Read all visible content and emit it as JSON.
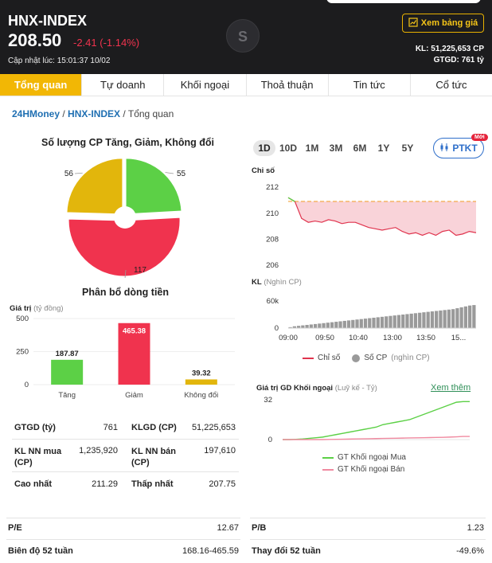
{
  "header": {
    "title": "HNX-INDEX",
    "price": "208.50",
    "change": "-2.41 (-1.14%)",
    "update_label": "Cập nhật lúc: 15:01:37 10/02",
    "board_button": "Xem bảng giá",
    "kl": "KL: 51,225,653 CP",
    "gtgd": "GTGD: 761 tỷ"
  },
  "tabs": [
    {
      "label": "Tổng quan",
      "active": true
    },
    {
      "label": "Tự doanh"
    },
    {
      "label": "Khối ngoại"
    },
    {
      "label": "Thoả thuận"
    },
    {
      "label": "Tin tức"
    },
    {
      "label": "Cổ tức"
    }
  ],
  "breadcrumb": [
    "24HMoney",
    "HNX-INDEX",
    "Tổng quan"
  ],
  "pie": {
    "title": "Số lượng CP Tăng, Giảm, Không đổi",
    "up": 55,
    "down": 117,
    "unchanged": 56,
    "colors": {
      "up": "#5cd046",
      "down": "#f0334e",
      "unchanged": "#e2b60c"
    }
  },
  "flow": {
    "title": "Phân bổ dòng tiền",
    "ylabel": "Giá trị",
    "yunit": "(tỷ đồng)"
  },
  "range_buttons": [
    "1D",
    "10D",
    "1M",
    "3M",
    "6M",
    "1Y",
    "5Y"
  ],
  "ptkt": {
    "label": "PTKT",
    "badge": "Mới"
  },
  "index_chart": {
    "ylabel": "Chỉ số",
    "vol_label": "KL",
    "vol_unit": "(Nghìn CP)",
    "legend_index": "Chỉ số",
    "legend_vol": "Số CP",
    "legend_vol_unit": "(nghìn CP)"
  },
  "foreign": {
    "title": "Giá trị GD Khối ngoại",
    "unit": "(Luỹ kế - Tỷ)",
    "link": "Xem thêm",
    "legend_buy": "GT Khối ngoại Mua",
    "legend_sell": "GT Khối ngoại Bán"
  },
  "stats": {
    "gtgd_label": "GTGD (tỷ)",
    "gtgd": "761",
    "klgd_label": "KLGD (CP)",
    "klgd": "51,225,653",
    "nn_buy_label": "KL NN mua (CP)",
    "nn_buy": "1,235,920",
    "nn_sell_label": "KL NN bán (CP)",
    "nn_sell": "197,610",
    "high_label": "Cao nhất",
    "high": "211.29",
    "low_label": "Thấp nhất",
    "low": "207.75",
    "pe_label": "P/E",
    "pe": "12.67",
    "pb_label": "P/B",
    "pb": "1.23",
    "range52_label": "Biên độ 52 tuần",
    "range52": "168.16-465.59",
    "change52_label": "Thay đổi 52 tuần",
    "change52": "-49.6%"
  },
  "chart_data": [
    {
      "type": "pie",
      "title": "Số lượng CP Tăng, Giảm, Không đổi",
      "categories": [
        "Tăng",
        "Giảm",
        "Không đổi"
      ],
      "values": [
        55,
        117,
        56
      ]
    },
    {
      "type": "bar",
      "title": "Phân bổ dòng tiền",
      "ylabel": "Giá trị (tỷ đồng)",
      "categories": [
        "Tăng",
        "Giảm",
        "Không đổi"
      ],
      "values": [
        187.87,
        465.38,
        39.32
      ],
      "colors": [
        "#5cd046",
        "#f0334e",
        "#e2b60c"
      ],
      "yticks": [
        0,
        250,
        500
      ],
      "ylim": [
        0,
        500
      ]
    },
    {
      "type": "line",
      "ylabel": "Chỉ số",
      "reference": 210.91,
      "yticks": [
        206,
        208,
        210,
        212
      ],
      "ylim": [
        206,
        212.5
      ],
      "xticks": [
        "09:00",
        "09:50",
        "10:40",
        "13:00",
        "13:50",
        "15..."
      ],
      "x": [
        "09:00",
        "09:10",
        "09:20",
        "09:30",
        "09:40",
        "09:50",
        "10:00",
        "10:10",
        "10:20",
        "10:30",
        "10:40",
        "10:50",
        "11:00",
        "11:10",
        "11:20",
        "11:30",
        "13:00",
        "13:10",
        "13:20",
        "13:30",
        "13:40",
        "13:50",
        "14:00",
        "14:10",
        "14:20",
        "14:30",
        "14:40",
        "14:50",
        "15:00"
      ],
      "values": [
        211.2,
        210.9,
        209.6,
        209.3,
        209.4,
        209.3,
        209.5,
        209.4,
        209.2,
        209.3,
        209.3,
        209.1,
        208.9,
        208.8,
        208.7,
        208.8,
        208.9,
        208.6,
        208.4,
        208.5,
        208.3,
        208.5,
        208.3,
        208.6,
        208.7,
        208.3,
        208.4,
        208.6,
        208.5
      ]
    },
    {
      "type": "bar",
      "ylabel": "KL (Nghìn CP)",
      "yticks": [
        0,
        60
      ],
      "ylim": [
        0,
        60
      ],
      "values": [
        2,
        4,
        5,
        6,
        7,
        8,
        9,
        10,
        11,
        12,
        13,
        14,
        15,
        16,
        17,
        18,
        19,
        20,
        21,
        22,
        23,
        24,
        25,
        26,
        27,
        28,
        29,
        30,
        31,
        32,
        33,
        34,
        35,
        36,
        37,
        38,
        39,
        40,
        41,
        42,
        44,
        46,
        48,
        50,
        51
      ]
    },
    {
      "type": "line",
      "title": "Giá trị GD Khối ngoại",
      "subtitle": "(Luỹ kế - Tỷ)",
      "yticks": [
        0,
        32
      ],
      "ylim": [
        0,
        32
      ],
      "series": [
        {
          "name": "GT Khối ngoại Mua",
          "values": [
            0,
            0,
            0.2,
            0.5,
            1,
            1.5,
            2,
            3,
            4,
            5,
            6,
            7,
            8,
            9,
            10,
            12,
            13,
            14,
            15,
            16,
            18,
            20,
            22,
            24,
            26,
            28,
            30,
            30.5,
            30.5
          ]
        },
        {
          "name": "GT Khối ngoại Bán",
          "values": [
            0,
            0,
            0,
            0,
            0,
            0,
            0,
            0.1,
            0.2,
            0.3,
            0.4,
            0.5,
            0.6,
            0.7,
            0.8,
            0.9,
            1,
            1.1,
            1.2,
            1.3,
            1.4,
            1.5,
            1.6,
            1.7,
            1.8,
            2,
            2.2,
            2.5,
            2.5
          ]
        }
      ]
    }
  ]
}
